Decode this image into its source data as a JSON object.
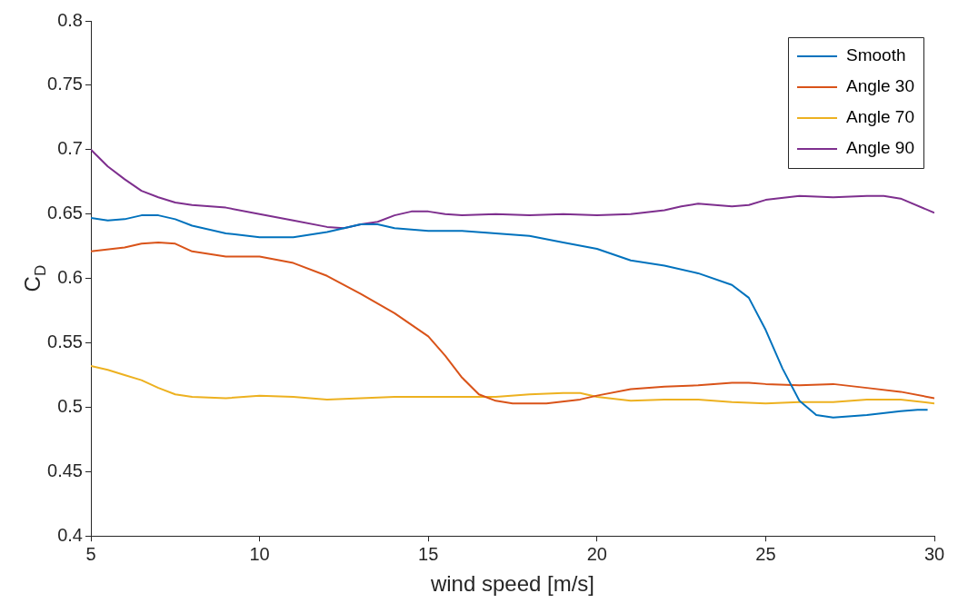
{
  "chart_data": {
    "type": "line",
    "xlabel": "wind speed [m/s]",
    "ylabel": "C$_{D}$",
    "xlim": [
      5,
      30
    ],
    "xticks": [
      5,
      10,
      15,
      20,
      25,
      30
    ],
    "ylim": [
      0.4,
      0.8
    ],
    "yticks": [
      0.4,
      0.45,
      0.5,
      0.55,
      0.6,
      0.65,
      0.7,
      0.75,
      0.8
    ],
    "grid": false,
    "legend": "top right",
    "marker": "none",
    "line_style": "solid",
    "series": [
      {
        "name": "Smooth",
        "color": "#0072bd",
        "x": [
          5,
          5.5,
          6,
          6.5,
          7,
          7.5,
          8,
          9,
          10,
          11,
          12,
          13,
          13.5,
          14,
          15,
          16,
          17,
          18,
          19,
          20,
          21,
          22,
          23,
          24,
          24.5,
          25,
          25.5,
          26,
          26.5,
          27,
          28,
          29,
          29.5,
          29.8
        ],
        "values": [
          0.647,
          0.645,
          0.646,
          0.649,
          0.649,
          0.646,
          0.641,
          0.635,
          0.632,
          0.632,
          0.636,
          0.642,
          0.642,
          0.639,
          0.637,
          0.637,
          0.635,
          0.633,
          0.628,
          0.623,
          0.614,
          0.61,
          0.604,
          0.595,
          0.585,
          0.56,
          0.53,
          0.505,
          0.494,
          0.492,
          0.494,
          0.497,
          0.498,
          0.498
        ]
      },
      {
        "name": "Angle 30",
        "color": "#d95319",
        "x": [
          5,
          6,
          6.5,
          7,
          7.5,
          8,
          9,
          10,
          11,
          12,
          13,
          14,
          15,
          15.5,
          16,
          16.5,
          17,
          17.5,
          18.5,
          19.5,
          20,
          21,
          22,
          23,
          24,
          24.5,
          25,
          26,
          27,
          28,
          29,
          30
        ],
        "values": [
          0.621,
          0.624,
          0.627,
          0.628,
          0.627,
          0.621,
          0.617,
          0.617,
          0.612,
          0.602,
          0.588,
          0.573,
          0.555,
          0.54,
          0.523,
          0.51,
          0.505,
          0.503,
          0.503,
          0.506,
          0.509,
          0.514,
          0.516,
          0.517,
          0.519,
          0.519,
          0.518,
          0.517,
          0.518,
          0.515,
          0.512,
          0.507
        ]
      },
      {
        "name": "Angle 70",
        "color": "#edb120",
        "x": [
          5,
          5.5,
          6,
          6.5,
          7,
          7.5,
          8,
          9,
          10,
          11,
          12,
          13,
          14,
          15,
          16,
          17,
          18,
          19,
          19.5,
          20,
          21,
          22,
          23,
          24,
          25,
          26,
          27,
          28,
          29,
          30
        ],
        "values": [
          0.532,
          0.529,
          0.525,
          0.521,
          0.515,
          0.51,
          0.508,
          0.507,
          0.509,
          0.508,
          0.506,
          0.507,
          0.508,
          0.508,
          0.508,
          0.508,
          0.51,
          0.511,
          0.511,
          0.508,
          0.505,
          0.506,
          0.506,
          0.504,
          0.503,
          0.504,
          0.504,
          0.506,
          0.506,
          0.503
        ]
      },
      {
        "name": "Angle 90",
        "color": "#7e2f8e",
        "x": [
          5,
          5.5,
          6,
          6.5,
          7,
          7.5,
          8,
          9,
          10,
          11,
          12,
          12.5,
          13,
          13.5,
          14,
          14.5,
          15,
          15.5,
          16,
          17,
          18,
          19,
          20,
          21,
          22,
          22.5,
          23,
          23.5,
          24,
          24.5,
          25,
          26,
          27,
          28,
          28.5,
          29,
          30
        ],
        "values": [
          0.7,
          0.687,
          0.677,
          0.668,
          0.663,
          0.659,
          0.657,
          0.655,
          0.65,
          0.645,
          0.64,
          0.639,
          0.642,
          0.644,
          0.649,
          0.652,
          0.652,
          0.65,
          0.649,
          0.65,
          0.649,
          0.65,
          0.649,
          0.65,
          0.653,
          0.656,
          0.658,
          0.657,
          0.656,
          0.657,
          0.661,
          0.664,
          0.663,
          0.664,
          0.664,
          0.662,
          0.651
        ]
      }
    ]
  }
}
